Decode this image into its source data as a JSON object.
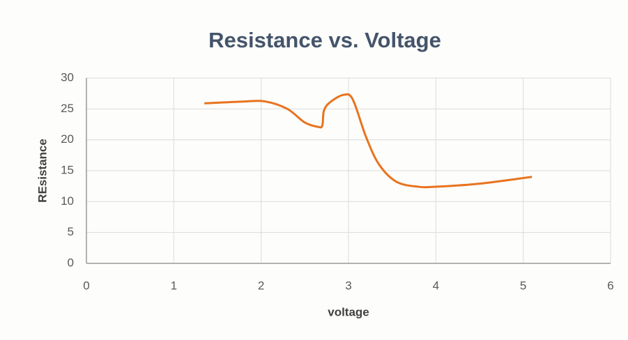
{
  "chart_data": {
    "type": "line",
    "title": "Resistance vs. Voltage",
    "x_label": "voltage",
    "y_label": "REsistance",
    "x": [
      1.35,
      1.8,
      2.05,
      2.3,
      2.5,
      2.65,
      2.7,
      2.72,
      2.8,
      2.95,
      3.05,
      3.2,
      3.35,
      3.55,
      3.8,
      4.0,
      4.5,
      5.1
    ],
    "values": [
      25.9,
      26.2,
      26.2,
      25.0,
      22.8,
      22.1,
      22.3,
      24.8,
      26.2,
      27.3,
      26.5,
      20.5,
      16.0,
      13.2,
      12.4,
      12.4,
      12.9,
      14.0
    ],
    "color": "#e8731e",
    "smooth": true,
    "xlim": [
      0,
      6
    ],
    "xticks": [
      0,
      1,
      2,
      3,
      4,
      5,
      6
    ],
    "ylim": [
      0,
      30
    ],
    "yticks": [
      0,
      5,
      10,
      15,
      20,
      25,
      30
    ],
    "grid": true
  }
}
